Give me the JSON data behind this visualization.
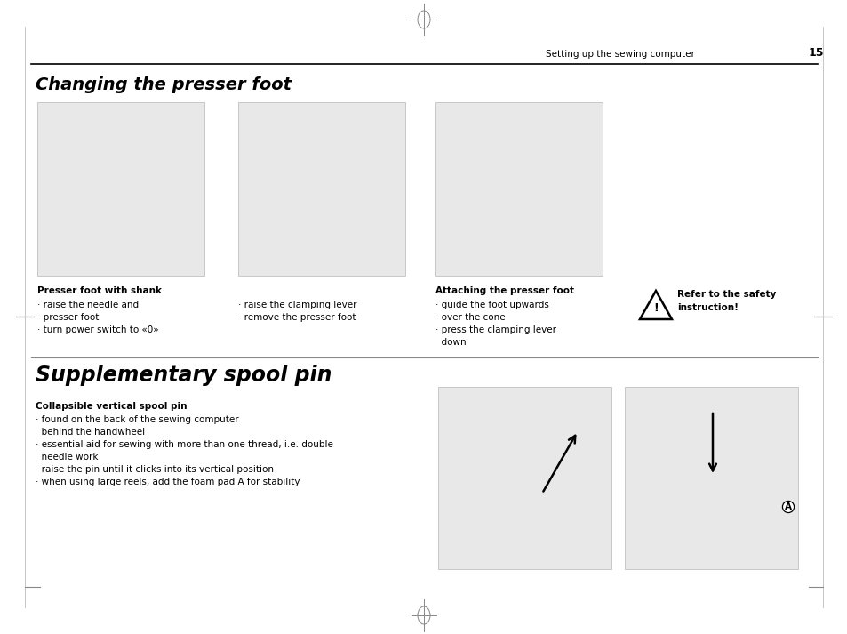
{
  "bg_color": "#ffffff",
  "page_width": 9.54,
  "page_height": 7.13,
  "header_text": "Setting up the sewing computer",
  "header_page": "15",
  "section1_title": "Changing the presser foot",
  "section2_title": "Supplementary spool pin",
  "col1_bold": "Presser foot with shank",
  "col1_items": [
    "· raise the needle and",
    "· presser foot",
    "· turn power switch to «0»"
  ],
  "col2_items": [
    "· raise the clamping lever",
    "· remove the presser foot"
  ],
  "col3_bold": "Attaching the presser foot",
  "col3_items": [
    "· guide the foot upwards",
    "· over the cone",
    "· press the clamping lever",
    "  down"
  ],
  "safety_text1": "Refer to the safety",
  "safety_text2": "instruction!",
  "spool_bold": "Collapsible vertical spool pin",
  "spool_items": [
    "· found on the back of the sewing computer",
    "  behind the handwheel",
    "· essential aid for sewing with more than one thread, i.e. double",
    "  needle work",
    "· raise the pin until it clicks into its vertical position",
    "· when using large reels, add the foam pad A for stability"
  ],
  "text_color": "#000000",
  "img_bg": "#e8e8e8",
  "img_border": "#c0c0c0",
  "sep_color": "#888888"
}
